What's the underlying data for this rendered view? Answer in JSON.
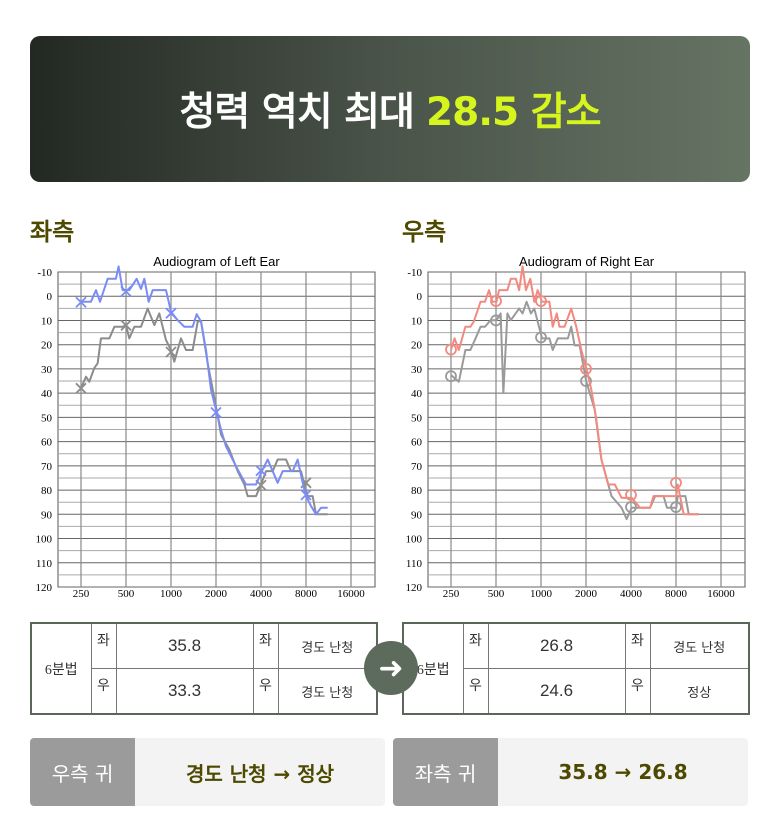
{
  "banner": {
    "title": "청력 역치 최대",
    "highlight": "28.5 감소",
    "highlight_color": "#d6f51e"
  },
  "sections": {
    "left": "좌측",
    "right": "우측"
  },
  "chart_data": [
    {
      "type": "line",
      "title": "Audiogram of Left Ear",
      "xscale": "log2",
      "xticks": [
        250,
        500,
        1000,
        2000,
        4000,
        8000,
        16000
      ],
      "yticks": [
        -10,
        0,
        10,
        20,
        30,
        40,
        50,
        60,
        70,
        80,
        90,
        100,
        110,
        120
      ],
      "ylim": [
        -10,
        120
      ],
      "y_inverted": true,
      "grid": true,
      "series": [
        {
          "color": "#7a8cf5",
          "marker": "x",
          "points": [
            [
              250,
              2.3
            ],
            [
              291,
              2.3
            ],
            [
              315,
              -2.5
            ],
            [
              335,
              2.3
            ],
            [
              377,
              -7.2
            ],
            [
              428,
              -7.2
            ],
            [
              446,
              -12.3
            ],
            [
              475,
              -2.5
            ],
            [
              526,
              -2.5
            ],
            [
              589,
              -7.2
            ],
            [
              630,
              -3
            ],
            [
              663,
              -7.2
            ],
            [
              709,
              2.3
            ],
            [
              754,
              -2.5
            ],
            [
              926,
              -2.5
            ],
            [
              1000,
              6.4
            ],
            [
              1108,
              9.9
            ],
            [
              1228,
              12.6
            ],
            [
              1396,
              12.6
            ],
            [
              1485,
              7.4
            ],
            [
              1588,
              10.5
            ],
            [
              1715,
              22.2
            ],
            [
              1852,
              38.6
            ],
            [
              2000,
              46.8
            ],
            [
              2160,
              55
            ],
            [
              2333,
              62
            ],
            [
              2585,
              67.4
            ],
            [
              2793,
              71.5
            ],
            [
              3175,
              77.7
            ],
            [
              3704,
              77.7
            ],
            [
              4105,
              71.5
            ],
            [
              4433,
              67.4
            ],
            [
              4788,
              72.2
            ],
            [
              5170,
              77
            ],
            [
              5585,
              72.2
            ],
            [
              6516,
              72.2
            ],
            [
              7037,
              67.4
            ],
            [
              7606,
              77
            ],
            [
              8000,
              82.5
            ],
            [
              8640,
              86.6
            ],
            [
              9330,
              90
            ],
            [
              10079,
              87.3
            ],
            [
              11172,
              87.3
            ]
          ],
          "markers": [
            [
              250,
              2.5
            ],
            [
              500,
              -2
            ],
            [
              1000,
              7
            ],
            [
              2000,
              48
            ],
            [
              4000,
              72
            ],
            [
              8000,
              82
            ]
          ]
        },
        {
          "color": "#8c8c8c",
          "marker": "x",
          "points": [
            [
              250,
              37.9
            ],
            [
              270,
              33.2
            ],
            [
              284,
              35.3
            ],
            [
              307,
              29.6
            ],
            [
              323,
              27.7
            ],
            [
              340,
              17.4
            ],
            [
              387,
              17.4
            ],
            [
              418,
              12.6
            ],
            [
              475,
              12.6
            ],
            [
              500,
              11.9
            ],
            [
              526,
              17.4
            ],
            [
              569,
              12.6
            ],
            [
              630,
              12.6
            ],
            [
              698,
              5.1
            ],
            [
              774,
              11.9
            ],
            [
              835,
              7.1
            ],
            [
              926,
              18.1
            ],
            [
              1000,
              22.2
            ],
            [
              1052,
              27
            ],
            [
              1166,
              17.4
            ],
            [
              1260,
              22.2
            ],
            [
              1396,
              22.2
            ],
            [
              1508,
              10.5
            ],
            [
              1588,
              10.2
            ],
            [
              1760,
              27.7
            ],
            [
              2000,
              45.5
            ],
            [
              2160,
              57.1
            ],
            [
              2456,
              63.3
            ],
            [
              2793,
              72.2
            ],
            [
              3095,
              77.7
            ],
            [
              3258,
              82.5
            ],
            [
              3704,
              82.5
            ],
            [
              4000,
              77.7
            ],
            [
              4320,
              72.2
            ],
            [
              4788,
              72.2
            ],
            [
              5170,
              67.4
            ],
            [
              5880,
              67.4
            ],
            [
              6350,
              72.2
            ],
            [
              7406,
              72.2
            ],
            [
              7800,
              77.7
            ],
            [
              8210,
              82.5
            ],
            [
              8867,
              82.5
            ],
            [
              9330,
              90
            ],
            [
              11172,
              90
            ]
          ],
          "markers": [
            [
              250,
              38
            ],
            [
              500,
              12
            ],
            [
              1000,
              23
            ],
            [
              4000,
              78
            ],
            [
              8000,
              77
            ]
          ]
        }
      ]
    },
    {
      "type": "line",
      "title": "Audiogram of Right Ear",
      "xscale": "log2",
      "xticks": [
        250,
        500,
        1000,
        2000,
        4000,
        8000,
        16000
      ],
      "yticks": [
        -10,
        0,
        10,
        20,
        30,
        40,
        50,
        60,
        70,
        80,
        90,
        100,
        110,
        120
      ],
      "ylim": [
        -10,
        120
      ],
      "y_inverted": true,
      "grid": true,
      "series": [
        {
          "color": "#f28a80",
          "marker": "o",
          "points": [
            [
              250,
              22.2
            ],
            [
              264,
              17.4
            ],
            [
              282,
              22.2
            ],
            [
              312,
              12.6
            ],
            [
              337,
              12.6
            ],
            [
              355,
              10.5
            ],
            [
              394,
              2.3
            ],
            [
              422,
              2.3
            ],
            [
              449,
              -2.5
            ],
            [
              472,
              2.3
            ],
            [
              504,
              2.3
            ],
            [
              524,
              -2.5
            ],
            [
              596,
              -2.5
            ],
            [
              628,
              -7.2
            ],
            [
              679,
              -7.2
            ],
            [
              714,
              -2.5
            ],
            [
              753,
              -12.3
            ],
            [
              793,
              -2.5
            ],
            [
              848,
              -7.2
            ],
            [
              902,
              2.3
            ],
            [
              950,
              -2.5
            ],
            [
              1016,
              2.3
            ],
            [
              1138,
              2.3
            ],
            [
              1198,
              12.6
            ],
            [
              1275,
              7.1
            ],
            [
              1329,
              12.6
            ],
            [
              1436,
              12.6
            ],
            [
              1593,
              5.1
            ],
            [
              1722,
              12.6
            ],
            [
              1861,
              22.2
            ],
            [
              2010,
              29.7
            ],
            [
              2172,
              38.6
            ],
            [
              2347,
              51
            ],
            [
              2536,
              67.4
            ],
            [
              2814,
              77.7
            ],
            [
              3121,
              77.7
            ],
            [
              3460,
              83.2
            ],
            [
              4040,
              83.2
            ],
            [
              4600,
              87.3
            ],
            [
              5370,
              87.3
            ],
            [
              5657,
              82.5
            ],
            [
              8040,
              82.5
            ],
            [
              8210,
              77.7
            ],
            [
              8560,
              83.2
            ],
            [
              9010,
              90
            ],
            [
              11370,
              90
            ]
          ],
          "markers": [
            [
              250,
              22
            ],
            [
              500,
              2
            ],
            [
              1000,
              2
            ],
            [
              2000,
              30
            ],
            [
              4000,
              82
            ],
            [
              8000,
              77
            ]
          ]
        },
        {
          "color": "#9a9a9a",
          "marker": "o",
          "points": [
            [
              250,
              32.5
            ],
            [
              282,
              35.3
            ],
            [
              312,
              22.2
            ],
            [
              337,
              22.2
            ],
            [
              365,
              17.4
            ],
            [
              394,
              12.6
            ],
            [
              422,
              12.6
            ],
            [
              460,
              9.9
            ],
            [
              504,
              9.9
            ],
            [
              537,
              7.1
            ],
            [
              560,
              40
            ],
            [
              596,
              7.1
            ],
            [
              628,
              9.9
            ],
            [
              714,
              5.1
            ],
            [
              753,
              7.1
            ],
            [
              801,
              2.3
            ],
            [
              856,
              7.1
            ],
            [
              902,
              5.1
            ],
            [
              1016,
              17.4
            ],
            [
              1138,
              17.4
            ],
            [
              1198,
              22.2
            ],
            [
              1295,
              17.4
            ],
            [
              1513,
              17.4
            ],
            [
              1593,
              12.6
            ],
            [
              1677,
              20.3
            ],
            [
              1813,
              20.3
            ],
            [
              2010,
              35.3
            ],
            [
              2288,
              46.8
            ],
            [
              2536,
              67.4
            ],
            [
              2963,
              82.5
            ],
            [
              3460,
              87.3
            ],
            [
              3740,
              92
            ],
            [
              4040,
              87.3
            ],
            [
              5370,
              87.3
            ],
            [
              5804,
              82.5
            ],
            [
              6605,
              82.5
            ],
            [
              6960,
              87.3
            ],
            [
              8040,
              87.3
            ],
            [
              8210,
              82.5
            ],
            [
              9250,
              82.5
            ],
            [
              9740,
              90
            ],
            [
              11370,
              90
            ]
          ],
          "markers": [
            [
              250,
              33
            ],
            [
              500,
              10
            ],
            [
              1000,
              17
            ],
            [
              2000,
              35
            ],
            [
              4000,
              87
            ],
            [
              8000,
              87
            ]
          ]
        }
      ]
    }
  ],
  "tables": [
    {
      "method": "6분법",
      "rows": [
        {
          "side": "좌",
          "value": "35.8",
          "side2": "좌",
          "class": "경도 난청"
        },
        {
          "side": "우",
          "value": "33.3",
          "side2": "우",
          "class": "경도 난청"
        }
      ]
    },
    {
      "method": "6분법",
      "rows": [
        {
          "side": "좌",
          "value": "26.8",
          "side2": "좌",
          "class": "경도 난청"
        },
        {
          "side": "우",
          "value": "24.6",
          "side2": "우",
          "class": "정상"
        }
      ]
    }
  ],
  "arrow_icon": "arrow-right-icon",
  "summary": [
    {
      "label": "우측 귀",
      "value": "경도 난청 → 정상"
    },
    {
      "label": "좌측 귀",
      "value": "35.8 → 26.8"
    }
  ]
}
